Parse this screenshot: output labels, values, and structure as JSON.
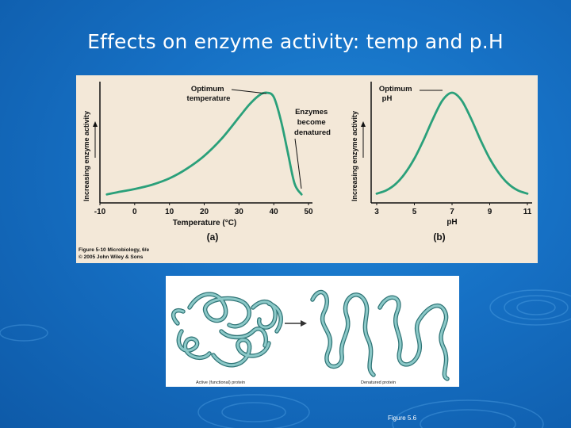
{
  "slide": {
    "title": "Effects on enzyme activity:  temp and p.H",
    "figure_note": "Figure 5.6"
  },
  "colors": {
    "background": "#1670c4",
    "figure_background": "#f3e8d8",
    "curve": "#2aa07a",
    "protein": "#5ea6a8"
  },
  "figure_top": {
    "caption_line1": "Figure 5-10  Microbiology, 6/e",
    "caption_line2": "© 2005 John Wiley & Sons",
    "panel_a": {
      "ylabel": "Increasing enzyme activity",
      "xlabel": "Temperature (°C)",
      "panel_label": "(a)",
      "annotation_optimum": [
        "Optimum",
        "temperature"
      ],
      "annotation_denatured": [
        "Enzymes",
        "become",
        "denatured"
      ]
    },
    "panel_b": {
      "ylabel": "Increasing enzyme activity",
      "xlabel": "pH",
      "panel_label": "(b)",
      "annotation_optimum": [
        "Optimum",
        "pH"
      ]
    }
  },
  "figure_bottom": {
    "label_active": "Active (functional) protein",
    "label_denatured": "Denatured protein"
  },
  "chart_data": [
    {
      "type": "line",
      "xlabel": "Temperature (°C)",
      "ylabel": "Increasing enzyme activity",
      "x_ticks": [
        "-10",
        "0",
        "10",
        "20",
        "30",
        "40",
        "50"
      ],
      "xlim": [
        -10,
        50
      ],
      "ylim": [
        0,
        1
      ],
      "x": [
        -8,
        -5,
        0,
        5,
        10,
        15,
        20,
        25,
        30,
        33,
        36,
        38,
        40,
        42,
        44,
        46,
        48
      ],
      "y": [
        0.05,
        0.07,
        0.1,
        0.14,
        0.2,
        0.29,
        0.41,
        0.57,
        0.77,
        0.89,
        0.98,
        1.0,
        0.96,
        0.75,
        0.45,
        0.15,
        0.05
      ]
    },
    {
      "type": "line",
      "xlabel": "pH",
      "ylabel": "Increasing enzyme activity",
      "x_ticks": [
        "3",
        "5",
        "7",
        "9",
        "11"
      ],
      "xlim": [
        3,
        11
      ],
      "ylim": [
        0,
        1
      ],
      "x": [
        3,
        3.5,
        4,
        4.5,
        5,
        5.5,
        6,
        6.5,
        7,
        7.5,
        8,
        8.5,
        9,
        9.5,
        10,
        10.5,
        11
      ],
      "y": [
        0.05,
        0.08,
        0.14,
        0.24,
        0.38,
        0.56,
        0.76,
        0.93,
        1.0,
        0.93,
        0.76,
        0.56,
        0.38,
        0.24,
        0.14,
        0.08,
        0.05
      ]
    }
  ]
}
